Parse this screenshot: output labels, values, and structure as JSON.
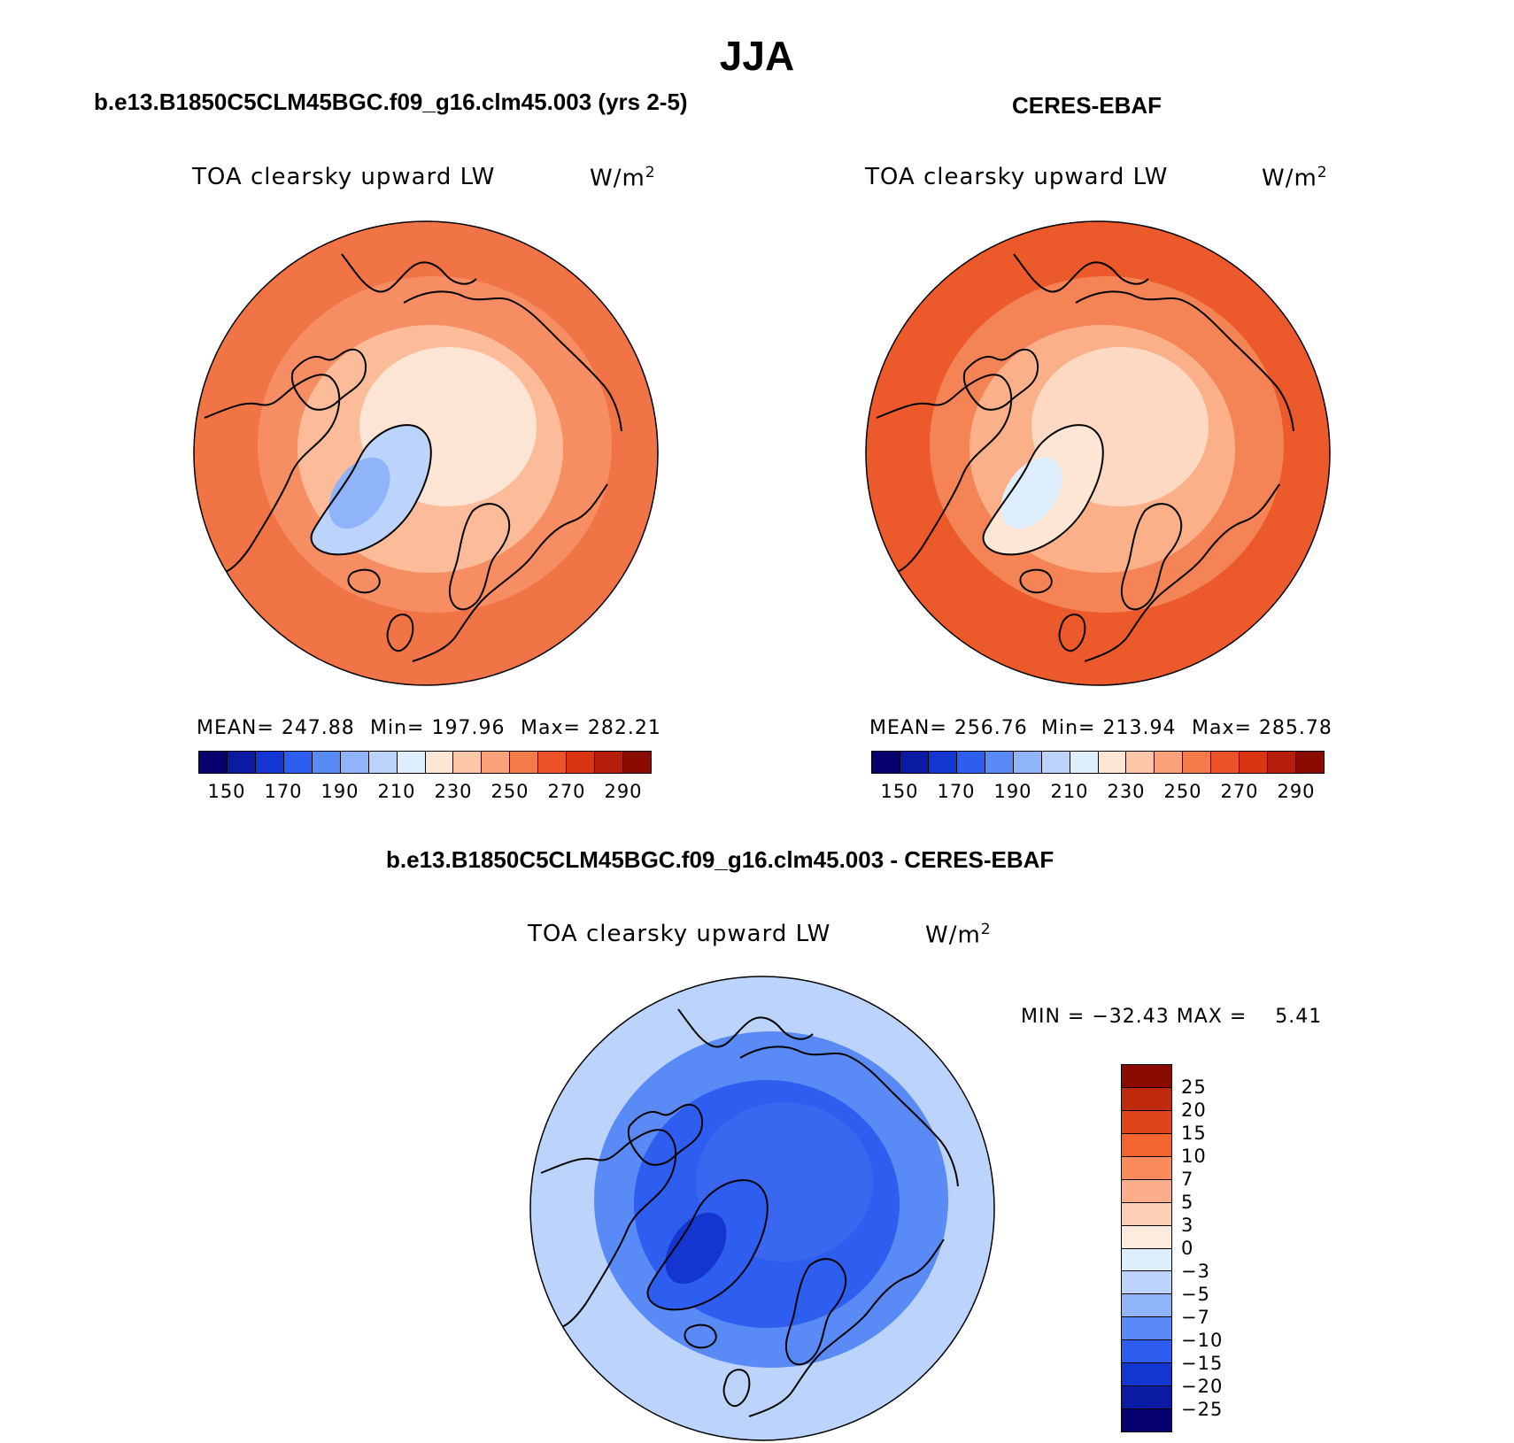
{
  "figure": {
    "title": "JJA"
  },
  "panels": {
    "model": {
      "title": "b.e13.B1850C5CLM45BGC.f09_g16.clm45.003 (yrs 2-5)",
      "variable": "TOA clearsky upward LW",
      "units_base": "W/m",
      "units_exp": "2",
      "stats": {
        "mean": "MEAN= 247.88",
        "min": "Min= 197.96",
        "max": "Max= 282.21"
      }
    },
    "obs": {
      "title": "CERES-EBAF",
      "variable": "TOA clearsky upward LW",
      "units_base": "W/m",
      "units_exp": "2",
      "stats": {
        "mean": "MEAN= 256.76",
        "min": "Min= 213.94",
        "max": "Max= 285.78"
      }
    },
    "diff": {
      "title": "b.e13.B1850C5CLM45BGC.f09_g16.clm45.003 - CERES-EBAF",
      "variable": "TOA clearsky upward LW",
      "units_base": "W/m",
      "units_exp": "2",
      "minmax": "MIN = −32.43 MAX =    5.41"
    }
  },
  "colorbars": {
    "abs": {
      "labels": [
        "150",
        "170",
        "190",
        "210",
        "230",
        "250",
        "270",
        "290"
      ],
      "colors": [
        "#08006e",
        "#0a1aa3",
        "#1436d0",
        "#2d5ef0",
        "#5a8af5",
        "#8fb4fa",
        "#bcd4fb",
        "#dfeefc",
        "#fde6d4",
        "#fcc7a8",
        "#faa07a",
        "#f57a4b",
        "#ed5228",
        "#d93512",
        "#b51e0a",
        "#8a0b00"
      ]
    },
    "diff": {
      "labels": [
        "25",
        "20",
        "15",
        "10",
        "7",
        "5",
        "3",
        "0",
        "−3",
        "−5",
        "−7",
        "−10",
        "−15",
        "−20",
        "−25"
      ],
      "colors": [
        "#8a0b00",
        "#c02a0c",
        "#e0441a",
        "#f4642f",
        "#f98b5c",
        "#fcae8a",
        "#fdd0b6",
        "#fdebdd",
        "#dfeefc",
        "#bcd4fb",
        "#8fb4fa",
        "#5a8af5",
        "#2d5ef0",
        "#1436d0",
        "#0a1aa3",
        "#08006e"
      ]
    }
  },
  "maps": {
    "model": {
      "outer": "#f07446",
      "mid": "#f78d62",
      "inner": "#fcbb99",
      "pole": "#fde5d5",
      "greenland": "#bcd4fb",
      "greenland_core": "#8fb4fa",
      "belt": "#e84e24"
    },
    "obs": {
      "outer": "#ec5a2c",
      "mid": "#f48455",
      "inner": "#fbb08a",
      "pole": "#fdd8c2",
      "greenland": "#fde6d4",
      "greenland_core": "#dfeefc",
      "belt": "#e24722"
    },
    "diff": {
      "outer": "#bcd4fb",
      "mid": "#5a8af5",
      "inner": "#2d5ef0",
      "pole": "#3a67ef",
      "greenland": "#2d5ef0",
      "greenland_core": "#1436d0",
      "belt": "#8fb4fa"
    }
  }
}
